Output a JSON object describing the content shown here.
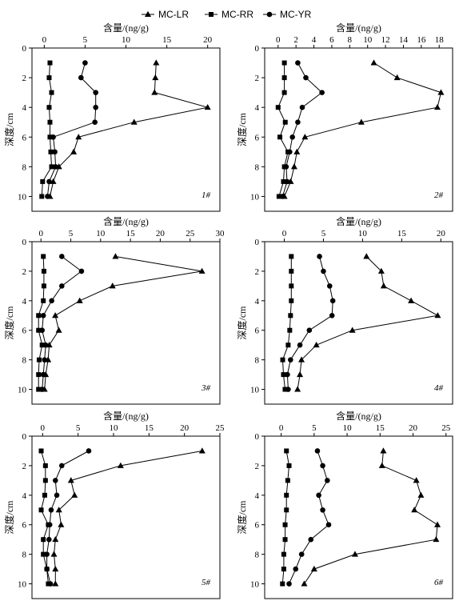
{
  "legend": {
    "items": [
      {
        "label": "MC-LR",
        "marker": "triangle"
      },
      {
        "label": "MC-RR",
        "marker": "square"
      },
      {
        "label": "MC-YR",
        "marker": "circle"
      }
    ],
    "placement": "top-center"
  },
  "chart_data": [
    {
      "type": "line",
      "panel": "1#",
      "xlabel": "含量/(ng/g)",
      "ylabel": "深度/cm",
      "xlim": [
        -1.5,
        21.5
      ],
      "xticks": [
        0,
        5,
        10,
        15,
        20
      ],
      "ylim": [
        0,
        11
      ],
      "yticks": [
        0,
        2,
        4,
        6,
        8,
        10
      ],
      "grid": false,
      "series": [
        {
          "name": "MC-LR",
          "marker": "triangle",
          "points": [
            [
              13.7,
              1
            ],
            [
              13.6,
              2
            ],
            [
              13.5,
              3
            ],
            [
              20,
              4
            ],
            [
              11,
              5
            ],
            [
              4.2,
              6
            ],
            [
              3.6,
              7
            ],
            [
              1.8,
              8
            ],
            [
              1.1,
              9
            ],
            [
              0.7,
              10
            ]
          ]
        },
        {
          "name": "MC-RR",
          "marker": "square",
          "points": [
            [
              0.7,
              1
            ],
            [
              0.6,
              2
            ],
            [
              0.9,
              3
            ],
            [
              0.6,
              4
            ],
            [
              0.7,
              5
            ],
            [
              0.7,
              6
            ],
            [
              0.8,
              7
            ],
            [
              0.9,
              8
            ],
            [
              -0.2,
              9
            ],
            [
              -0.3,
              10
            ]
          ]
        },
        {
          "name": "MC-YR",
          "marker": "circle",
          "points": [
            [
              5,
              1
            ],
            [
              4.5,
              2
            ],
            [
              6.3,
              3
            ],
            [
              6.3,
              4
            ],
            [
              6.2,
              5
            ],
            [
              1.1,
              6
            ],
            [
              1.3,
              7
            ],
            [
              1.4,
              8
            ],
            [
              0.6,
              9
            ],
            [
              0.4,
              10
            ]
          ]
        }
      ]
    },
    {
      "type": "line",
      "panel": "2#",
      "xlabel": "含量/(ng/g)",
      "ylabel": "深度/cm",
      "xlim": [
        -1.5,
        19.5
      ],
      "xticks": [
        0,
        2,
        4,
        6,
        8,
        10,
        12,
        14,
        16,
        18
      ],
      "ylim": [
        0,
        11
      ],
      "yticks": [
        0,
        2,
        4,
        6,
        8,
        10
      ],
      "grid": false,
      "series": [
        {
          "name": "MC-LR",
          "marker": "triangle",
          "points": [
            [
              10.7,
              1
            ],
            [
              13.3,
              2
            ],
            [
              18.2,
              3
            ],
            [
              17.8,
              4
            ],
            [
              9.3,
              5
            ],
            [
              3,
              6
            ],
            [
              2.1,
              7
            ],
            [
              1.8,
              8
            ],
            [
              1.4,
              9
            ],
            [
              0.7,
              10
            ]
          ]
        },
        {
          "name": "MC-RR",
          "marker": "square",
          "points": [
            [
              0.7,
              1
            ],
            [
              0.7,
              2
            ],
            [
              0.7,
              3
            ],
            [
              0,
              4
            ],
            [
              0.8,
              5
            ],
            [
              0.2,
              6
            ],
            [
              1.1,
              7
            ],
            [
              0.7,
              8
            ],
            [
              0.6,
              9
            ],
            [
              0.1,
              10
            ]
          ]
        },
        {
          "name": "MC-YR",
          "marker": "circle",
          "points": [
            [
              2.2,
              1
            ],
            [
              3.1,
              2
            ],
            [
              4.9,
              3
            ],
            [
              2.7,
              4
            ],
            [
              2.2,
              5
            ],
            [
              1.6,
              6
            ],
            [
              1.3,
              7
            ],
            [
              0.9,
              8
            ],
            [
              1,
              9
            ],
            [
              0.5,
              10
            ]
          ]
        }
      ]
    },
    {
      "type": "line",
      "panel": "3#",
      "xlabel": "含量/(ng/g)",
      "ylabel": "深度/cm",
      "xlim": [
        -1.5,
        30
      ],
      "xticks": [
        0,
        5,
        10,
        15,
        20,
        25,
        30
      ],
      "ylim": [
        0,
        11
      ],
      "yticks": [
        0,
        2,
        4,
        6,
        8,
        10
      ],
      "grid": false,
      "series": [
        {
          "name": "MC-LR",
          "marker": "triangle",
          "points": [
            [
              12.5,
              1
            ],
            [
              27,
              2
            ],
            [
              12,
              3
            ],
            [
              6.5,
              4
            ],
            [
              2.4,
              5
            ],
            [
              3,
              6
            ],
            [
              1.4,
              7
            ],
            [
              1.2,
              8
            ],
            [
              0.8,
              9
            ],
            [
              0.6,
              10
            ]
          ]
        },
        {
          "name": "MC-RR",
          "marker": "square",
          "points": [
            [
              0.4,
              1
            ],
            [
              0.5,
              2
            ],
            [
              0.5,
              3
            ],
            [
              0.4,
              4
            ],
            [
              -0.4,
              5
            ],
            [
              -0.4,
              6
            ],
            [
              0.2,
              7
            ],
            [
              -0.3,
              8
            ],
            [
              -0.4,
              9
            ],
            [
              -0.4,
              10
            ]
          ]
        },
        {
          "name": "MC-YR",
          "marker": "circle",
          "points": [
            [
              3.5,
              1
            ],
            [
              6.8,
              2
            ],
            [
              3.5,
              3
            ],
            [
              1.8,
              4
            ],
            [
              0.4,
              5
            ],
            [
              0.2,
              6
            ],
            [
              0.8,
              7
            ],
            [
              0.6,
              8
            ],
            [
              0.4,
              9
            ],
            [
              0.2,
              10
            ]
          ]
        }
      ]
    },
    {
      "type": "line",
      "panel": "4#",
      "xlabel": "含量/(ng/g)",
      "ylabel": "深度/cm",
      "xlim": [
        -2.5,
        21.5
      ],
      "xticks": [
        0,
        5,
        10,
        15,
        20
      ],
      "ylim": [
        0,
        11
      ],
      "yticks": [
        0,
        2,
        4,
        6,
        8,
        10
      ],
      "grid": false,
      "series": [
        {
          "name": "MC-LR",
          "marker": "triangle",
          "points": [
            [
              10.5,
              1
            ],
            [
              12.4,
              2
            ],
            [
              12.7,
              3
            ],
            [
              16.2,
              4
            ],
            [
              19.6,
              5
            ],
            [
              8.7,
              6
            ],
            [
              4.1,
              7
            ],
            [
              2.2,
              8
            ],
            [
              2,
              9
            ],
            [
              1.7,
              10
            ]
          ]
        },
        {
          "name": "MC-RR",
          "marker": "square",
          "points": [
            [
              0.9,
              1
            ],
            [
              0.9,
              2
            ],
            [
              0.9,
              3
            ],
            [
              0.9,
              4
            ],
            [
              0.8,
              5
            ],
            [
              0.7,
              6
            ],
            [
              0.5,
              7
            ],
            [
              -0.2,
              8
            ],
            [
              -0.1,
              9
            ],
            [
              0.1,
              10
            ]
          ]
        },
        {
          "name": "MC-YR",
          "marker": "circle",
          "points": [
            [
              4.5,
              1
            ],
            [
              5,
              2
            ],
            [
              5.8,
              3
            ],
            [
              6.2,
              4
            ],
            [
              6.1,
              5
            ],
            [
              3.2,
              6
            ],
            [
              2,
              7
            ],
            [
              0.8,
              8
            ],
            [
              0.4,
              9
            ],
            [
              0.5,
              10
            ]
          ]
        }
      ]
    },
    {
      "type": "line",
      "panel": "5#",
      "xlabel": "含量/(ng/g)",
      "ylabel": "深度/cm",
      "xlim": [
        -1.5,
        25
      ],
      "xticks": [
        0,
        5,
        10,
        15,
        20,
        25
      ],
      "ylim": [
        0,
        11
      ],
      "yticks": [
        0,
        2,
        4,
        6,
        8,
        10
      ],
      "grid": false,
      "series": [
        {
          "name": "MC-LR",
          "marker": "triangle",
          "points": [
            [
              22.5,
              1
            ],
            [
              11,
              2
            ],
            [
              4,
              3
            ],
            [
              4.5,
              4
            ],
            [
              2.3,
              5
            ],
            [
              2.6,
              6
            ],
            [
              1.8,
              7
            ],
            [
              1.6,
              8
            ],
            [
              1.8,
              9
            ],
            [
              1.8,
              10
            ]
          ]
        },
        {
          "name": "MC-RR",
          "marker": "square",
          "points": [
            [
              -0.2,
              1
            ],
            [
              0.4,
              2
            ],
            [
              0.4,
              3
            ],
            [
              0.3,
              4
            ],
            [
              -0.2,
              5
            ],
            [
              0.8,
              6
            ],
            [
              0.1,
              7
            ],
            [
              0.1,
              8
            ],
            [
              0.6,
              9
            ],
            [
              0.8,
              10
            ]
          ]
        },
        {
          "name": "MC-YR",
          "marker": "circle",
          "points": [
            [
              6.5,
              1
            ],
            [
              2.7,
              2
            ],
            [
              1.8,
              3
            ],
            [
              2,
              4
            ],
            [
              1.2,
              5
            ],
            [
              1,
              6
            ],
            [
              0.9,
              7
            ],
            [
              0.6,
              8
            ],
            [
              0.6,
              9
            ],
            [
              1.1,
              10
            ]
          ]
        }
      ]
    },
    {
      "type": "line",
      "panel": "6#",
      "xlabel": "含量/(ng/g)",
      "ylabel": "深度/cm",
      "xlim": [
        -2.5,
        26
      ],
      "xticks": [
        0,
        5,
        10,
        15,
        20,
        25
      ],
      "ylim": [
        0,
        11
      ],
      "yticks": [
        0,
        2,
        4,
        6,
        8,
        10
      ],
      "grid": false,
      "series": [
        {
          "name": "MC-LR",
          "marker": "triangle",
          "points": [
            [
              15.5,
              1
            ],
            [
              15.3,
              2
            ],
            [
              20.5,
              3
            ],
            [
              21.2,
              4
            ],
            [
              20.2,
              5
            ],
            [
              23.7,
              6
            ],
            [
              23.5,
              7
            ],
            [
              11.2,
              8
            ],
            [
              5,
              9
            ],
            [
              3.5,
              10
            ]
          ]
        },
        {
          "name": "MC-RR",
          "marker": "square",
          "points": [
            [
              0.8,
              1
            ],
            [
              1.2,
              2
            ],
            [
              1,
              3
            ],
            [
              0.8,
              4
            ],
            [
              0.8,
              5
            ],
            [
              0.6,
              6
            ],
            [
              0.6,
              7
            ],
            [
              0.4,
              8
            ],
            [
              0.4,
              9
            ],
            [
              0.2,
              10
            ]
          ]
        },
        {
          "name": "MC-YR",
          "marker": "circle",
          "points": [
            [
              5.5,
              1
            ],
            [
              6.3,
              2
            ],
            [
              7,
              3
            ],
            [
              5.7,
              4
            ],
            [
              6.3,
              5
            ],
            [
              7.2,
              6
            ],
            [
              4.5,
              7
            ],
            [
              3.1,
              8
            ],
            [
              2.2,
              9
            ],
            [
              1.2,
              10
            ]
          ]
        }
      ]
    }
  ]
}
